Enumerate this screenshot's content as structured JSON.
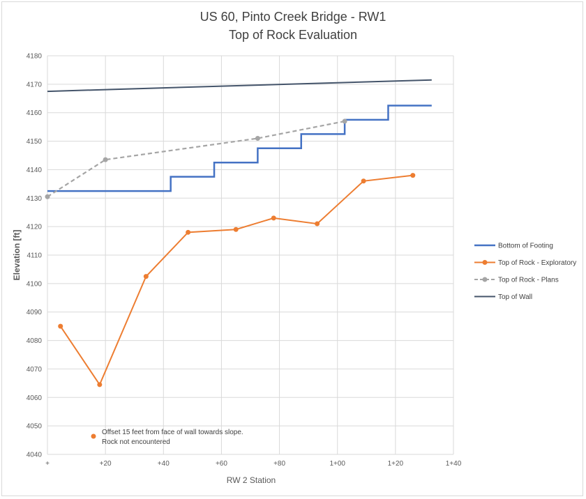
{
  "chart_data": {
    "type": "line",
    "title": "US 60, Pinto Creek Bridge - RW1",
    "subtitle": "Top of Rock Evaluation",
    "xlabel": "RW 2 Station",
    "ylabel": "Elevation [ft]",
    "xlim": [
      0,
      140
    ],
    "ylim": [
      4040,
      4180
    ],
    "x_ticks": [
      {
        "value": 0,
        "label": "+"
      },
      {
        "value": 20,
        "label": "+20"
      },
      {
        "value": 40,
        "label": "+40"
      },
      {
        "value": 60,
        "label": "+60"
      },
      {
        "value": 80,
        "label": "+80"
      },
      {
        "value": 100,
        "label": "1+00"
      },
      {
        "value": 120,
        "label": "1+20"
      },
      {
        "value": 140,
        "label": "1+40"
      }
    ],
    "y_ticks": [
      4040,
      4050,
      4060,
      4070,
      4080,
      4090,
      4100,
      4110,
      4120,
      4130,
      4140,
      4150,
      4160,
      4170,
      4180
    ],
    "grid": true,
    "legend_position": "right",
    "series": [
      {
        "name": "Bottom of Footing",
        "color": "#4472c4",
        "style": "step",
        "x": [
          0,
          42.5,
          42.5,
          57.5,
          57.5,
          72.5,
          72.5,
          87.5,
          87.5,
          102.5,
          102.5,
          117.5,
          117.5,
          132.5
        ],
        "y": [
          4132.5,
          4132.5,
          4137.5,
          4137.5,
          4142.5,
          4142.5,
          4147.5,
          4147.5,
          4152.5,
          4152.5,
          4157.5,
          4157.5,
          4162.5,
          4162.5
        ]
      },
      {
        "name": "Top of Rock - Exploratory",
        "color": "#ed7d31",
        "style": "line-markers",
        "x": [
          4.5,
          18,
          34,
          48.5,
          65,
          78,
          93,
          109,
          126
        ],
        "y": [
          4085,
          4064.5,
          4102.5,
          4118,
          4119,
          4123,
          4121,
          4136,
          4138
        ]
      },
      {
        "name": "Top of Rock - Plans",
        "color": "#a5a5a5",
        "style": "dashed-markers",
        "x": [
          0,
          20,
          72.5,
          102.5
        ],
        "y": [
          4130.5,
          4143.5,
          4151,
          4157
        ]
      },
      {
        "name": "Top of Wall",
        "color": "#44546a",
        "style": "line",
        "x": [
          0,
          132.5
        ],
        "y": [
          4167.5,
          4171.5
        ]
      }
    ],
    "annotation": {
      "lines": [
        "Offset 15 feet from face of wall towards slope.",
        "Rock not encountered"
      ],
      "marker_color": "#ed7d31"
    }
  }
}
